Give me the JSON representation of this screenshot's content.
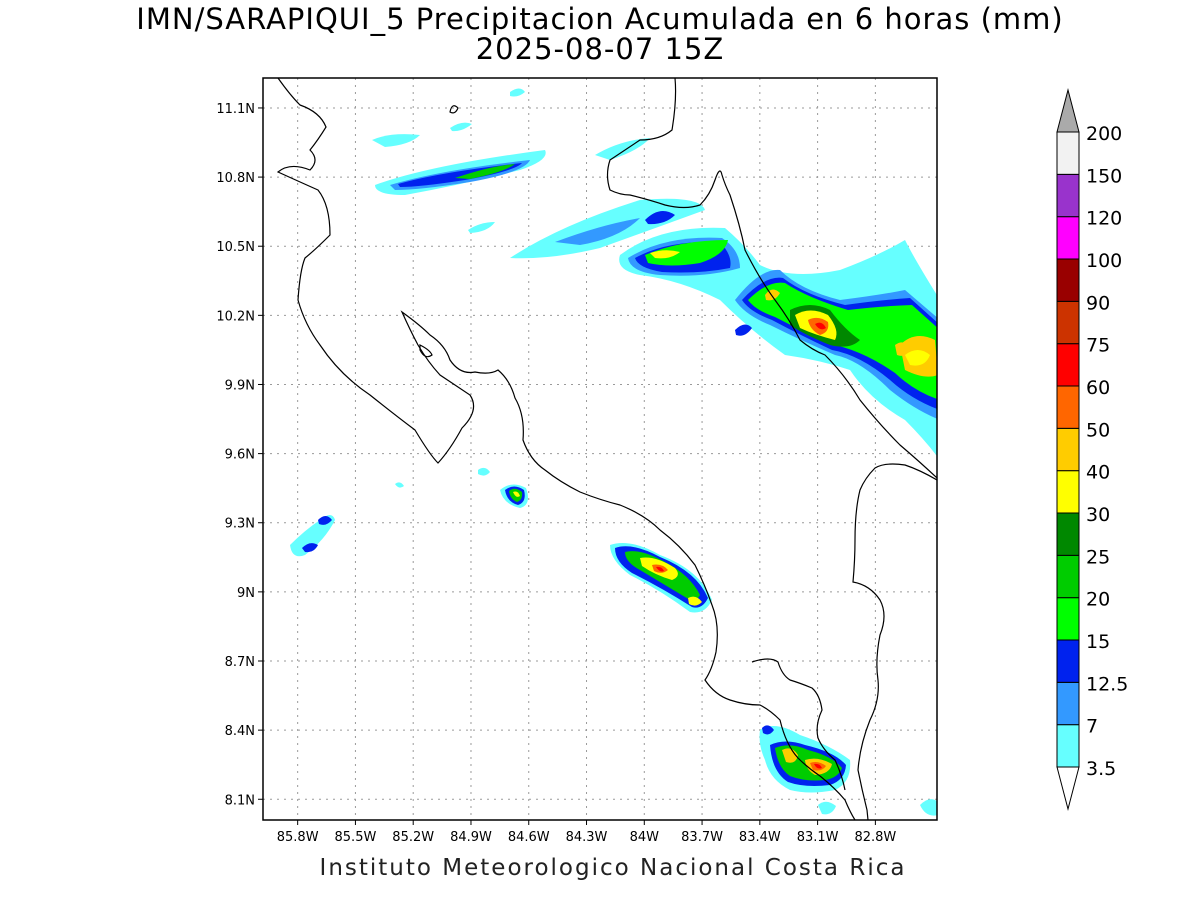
{
  "title": {
    "line1": "IMN/SARAPIQUI_5 Precipitacion Acumulada en 6 horas (mm)",
    "line2": "2025-08-07 15Z"
  },
  "footer": "Instituto Meteorologico Nacional Costa Rica",
  "map": {
    "lon_range": [
      -85.98,
      -82.48
    ],
    "lat_range": [
      8.01,
      11.23
    ],
    "grid": "dotted",
    "lat_ticks": [
      "11.1N",
      "10.8N",
      "10.5N",
      "10.2N",
      "9.9N",
      "9.6N",
      "9.3N",
      "9N",
      "8.7N",
      "8.4N",
      "8.1N"
    ],
    "lon_ticks": [
      "85.8W",
      "85.5W",
      "85.2W",
      "84.9W",
      "84.6W",
      "84.3W",
      "84W",
      "83.7W",
      "83.4W",
      "83.1W",
      "82.8W"
    ]
  },
  "colorbar": {
    "labels": [
      "3.5",
      "7",
      "12.5",
      "15",
      "20",
      "25",
      "30",
      "40",
      "50",
      "60",
      "75",
      "90",
      "100",
      "120",
      "150",
      "200"
    ],
    "colors": [
      "#66ffff",
      "#3399ff",
      "#0022ee",
      "#00ff00",
      "#00cc00",
      "#008800",
      "#ffff00",
      "#ffcc00",
      "#ff6600",
      "#ff0000",
      "#cc3300",
      "#990000",
      "#ff00ff",
      "#9933cc",
      "#f2f2f2"
    ],
    "over_color": "#aaaaaa",
    "under_color": "#ffffff"
  },
  "precip_cells": [
    {
      "region": "north-coast-band",
      "levels": [
        "3.5",
        "7",
        "12.5",
        "15",
        "20"
      ]
    },
    {
      "region": "caribbean-coast-band",
      "levels": [
        "3.5",
        "7",
        "12.5",
        "15",
        "20",
        "25",
        "30",
        "40",
        "60"
      ]
    },
    {
      "region": "osa-southeast",
      "levels": [
        "3.5",
        "7",
        "12.5",
        "15",
        "20",
        "30",
        "40",
        "60"
      ]
    },
    {
      "region": "central-pacific",
      "levels": [
        "3.5",
        "7",
        "12.5",
        "15",
        "20",
        "30",
        "40"
      ]
    }
  ]
}
